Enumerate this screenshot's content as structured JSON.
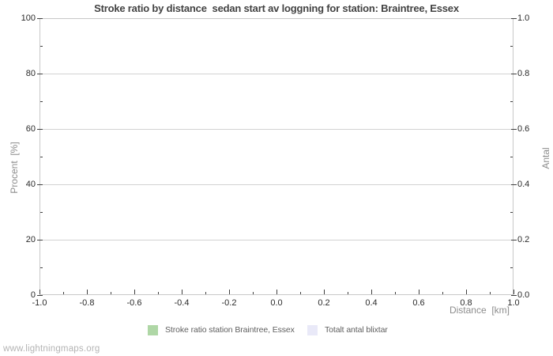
{
  "watermark": "www.lightningmaps.org",
  "chart_data": {
    "type": "line",
    "title": "Stroke ratio by distance  sedan start av loggning for station: Braintree, Essex",
    "grid": "horizontal-only",
    "legend_position": "bottom",
    "background": "#ffffff",
    "colors": {
      "gridline": "#d2d2d2",
      "plot_border": "#c8c8c8",
      "tick": "#404040",
      "tick_label": "#2b2b2b",
      "title": "#424242",
      "axis_title": "#8c8c8c",
      "legend_text": "#5f5f5f",
      "watermark": "#b4b4b4"
    },
    "x_axis": {
      "label": "Distance  [km]",
      "min": -1.0,
      "max": 1.0,
      "tick_values": [
        -1.0,
        -0.8,
        -0.6,
        -0.4,
        -0.2,
        0.0,
        0.2,
        0.4,
        0.6,
        0.8,
        1.0
      ],
      "tick_labels": [
        "-1.0",
        "-0.8",
        "-0.6",
        "-0.4",
        "-0.2",
        "0.0",
        "0.2",
        "0.4",
        "0.6",
        "0.8",
        "1.0"
      ],
      "minor_step": 0.1
    },
    "y_left_axis": {
      "label": "Procent  [%]",
      "min": 0,
      "max": 100,
      "tick_values": [
        0,
        20,
        40,
        60,
        80,
        100
      ],
      "tick_labels": [
        "0",
        "20",
        "40",
        "60",
        "80",
        "100"
      ],
      "minor_step": 10
    },
    "y_right_axis": {
      "label": "Antal",
      "min": 0.0,
      "max": 1.0,
      "tick_values": [
        0.0,
        0.2,
        0.4,
        0.6,
        0.8,
        1.0
      ],
      "tick_labels": [
        "0.0",
        "0.2",
        "0.4",
        "0.6",
        "0.8",
        "1.0"
      ],
      "minor_step": 0.1
    },
    "series": [
      {
        "name": "Stroke ratio station Braintree, Essex",
        "color": "#afd7a6",
        "axis": "left",
        "values": []
      },
      {
        "name": "Totalt antal blixtar",
        "color": "#e9e9f8",
        "axis": "right",
        "values": []
      }
    ]
  }
}
